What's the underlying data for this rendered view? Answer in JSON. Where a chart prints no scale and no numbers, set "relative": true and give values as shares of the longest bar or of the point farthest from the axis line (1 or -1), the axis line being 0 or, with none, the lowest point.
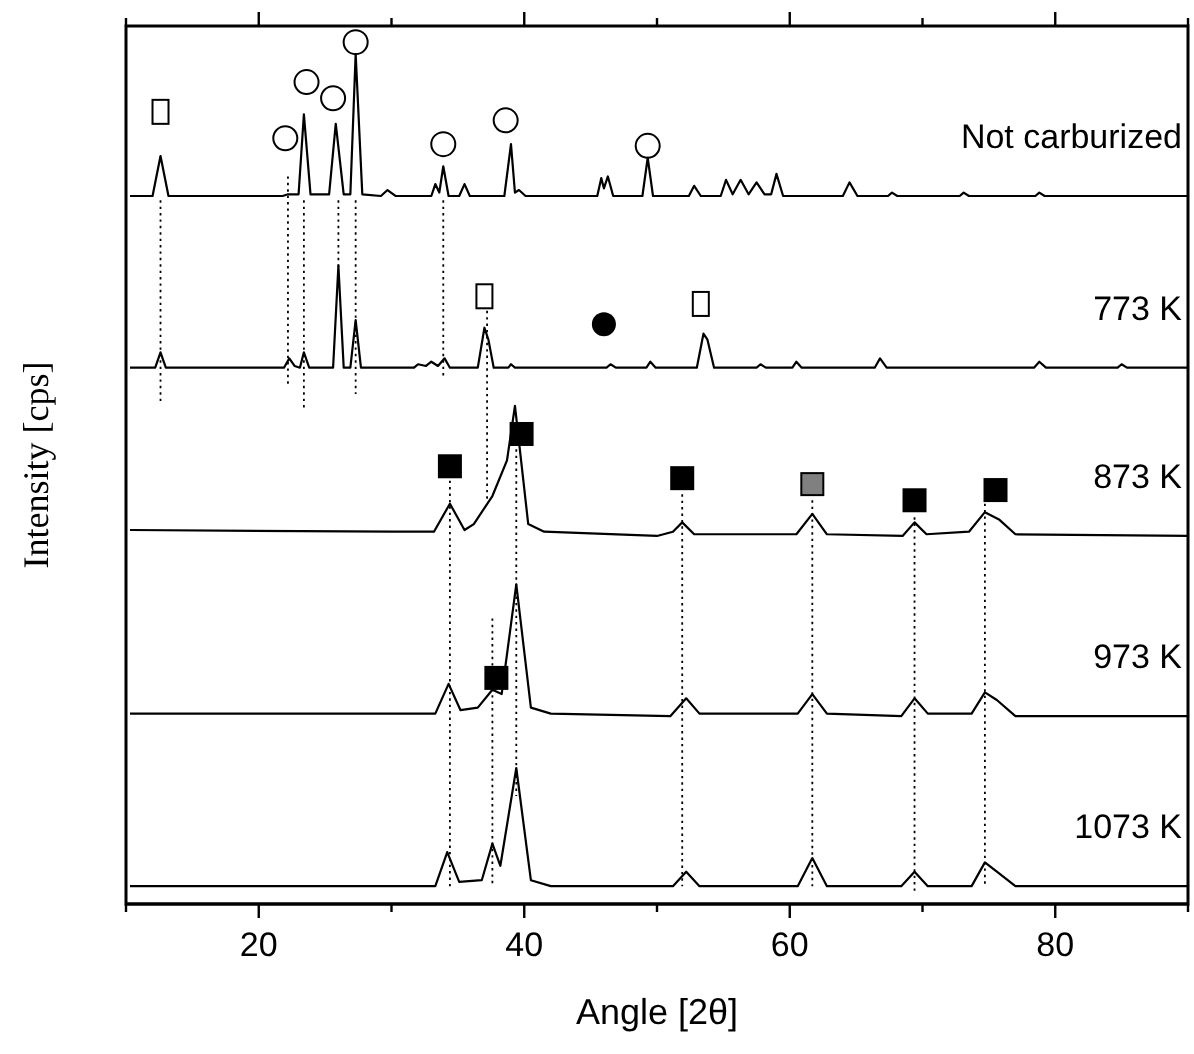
{
  "chart_data": {
    "type": "line",
    "relative": true,
    "xlabel": "Angle [2θ]",
    "ylabel": "Intensity [cps]",
    "tick_labels": "x",
    "xlim": [
      10,
      90
    ],
    "xticks": [
      {
        "value": 10,
        "label": null
      },
      20,
      {
        "value": 30,
        "label": null
      },
      40,
      {
        "value": 50,
        "label": null
      },
      60,
      {
        "value": 70,
        "label": null
      },
      80,
      {
        "value": 90,
        "label": null
      }
    ],
    "annotations": [
      "Not carburized",
      "773 K",
      "873 K",
      "973 K",
      "1073 K"
    ],
    "series": [
      {
        "type": "line",
        "color": "#000000",
        "x": [
          10.3,
          12.0,
          12.6,
          13.2,
          21.8,
          22.2,
          23.0,
          23.4,
          23.9,
          25.3,
          25.8,
          26.4,
          26.9,
          27.3,
          27.8,
          29.2,
          29.7,
          30.3,
          33.0,
          33.3,
          33.6,
          33.9,
          34.3,
          35.1,
          35.5,
          35.9,
          38.5,
          39.0,
          39.3,
          39.6,
          40.1,
          45.5,
          45.8,
          46.0,
          46.3,
          46.7,
          48.9,
          49.3,
          49.7,
          52.4,
          52.8,
          53.3,
          54.8,
          55.2,
          55.7,
          56.3,
          56.9,
          57.5,
          58.1,
          58.6,
          59.0,
          59.5,
          64.0,
          64.5,
          65.1,
          67.4,
          67.7,
          68.1,
          72.8,
          73.1,
          73.5,
          78.5,
          78.8,
          79.2,
          90
        ],
        "values": [
          0.833,
          0.833,
          0.88,
          0.833,
          0.833,
          0.835,
          0.835,
          0.929,
          0.835,
          0.835,
          0.918,
          0.835,
          0.835,
          1.0,
          0.835,
          0.833,
          0.84,
          0.833,
          0.833,
          0.847,
          0.837,
          0.868,
          0.833,
          0.833,
          0.847,
          0.833,
          0.833,
          0.894,
          0.837,
          0.84,
          0.833,
          0.833,
          0.854,
          0.842,
          0.856,
          0.833,
          0.833,
          0.878,
          0.833,
          0.833,
          0.845,
          0.833,
          0.833,
          0.852,
          0.835,
          0.852,
          0.835,
          0.849,
          0.835,
          0.835,
          0.859,
          0.833,
          0.833,
          0.849,
          0.833,
          0.833,
          0.837,
          0.833,
          0.833,
          0.837,
          0.833,
          0.833,
          0.837,
          0.833,
          0.833
        ]
      },
      {
        "type": "line",
        "color": "#000000",
        "x": [
          10.3,
          12.2,
          12.6,
          13.0,
          21.9,
          22.3,
          22.7,
          23.1,
          23.4,
          23.8,
          25.6,
          26.0,
          26.4,
          26.9,
          27.3,
          27.7,
          31.7,
          32.0,
          32.6,
          33.0,
          33.5,
          34.0,
          34.4,
          36.5,
          37.0,
          37.3,
          37.7,
          38.8,
          39.0,
          39.3,
          46.2,
          46.5,
          46.9,
          49.2,
          49.5,
          49.9,
          53.0,
          53.5,
          53.8,
          54.3,
          57.5,
          57.8,
          58.2,
          60.2,
          60.5,
          60.9,
          66.4,
          66.8,
          67.3,
          78.4,
          78.8,
          79.3,
          84.7,
          85.0,
          85.4,
          90
        ],
        "values": [
          0.631,
          0.631,
          0.649,
          0.631,
          0.631,
          0.642,
          0.633,
          0.631,
          0.649,
          0.631,
          0.631,
          0.751,
          0.631,
          0.631,
          0.687,
          0.631,
          0.631,
          0.635,
          0.633,
          0.638,
          0.633,
          0.642,
          0.631,
          0.631,
          0.678,
          0.664,
          0.631,
          0.631,
          0.635,
          0.631,
          0.631,
          0.635,
          0.631,
          0.631,
          0.638,
          0.631,
          0.631,
          0.671,
          0.664,
          0.631,
          0.631,
          0.635,
          0.631,
          0.631,
          0.638,
          0.631,
          0.631,
          0.642,
          0.631,
          0.631,
          0.638,
          0.631,
          0.631,
          0.635,
          0.631,
          0.631
        ]
      },
      {
        "type": "line",
        "color": "#000000",
        "x": [
          10.3,
          30,
          33.2,
          34.4,
          35.5,
          36.2,
          37.6,
          38.7,
          39.3,
          40.3,
          41.5,
          50,
          51.2,
          51.9,
          52.8,
          60.5,
          61.7,
          62.8,
          68.5,
          69.4,
          70.3,
          73.5,
          74.7,
          75.8,
          77,
          90
        ],
        "values": [
          0.44,
          0.438,
          0.438,
          0.471,
          0.44,
          0.447,
          0.48,
          0.522,
          0.586,
          0.447,
          0.438,
          0.433,
          0.438,
          0.449,
          0.435,
          0.435,
          0.459,
          0.435,
          0.433,
          0.449,
          0.435,
          0.438,
          0.461,
          0.452,
          0.435,
          0.433
        ]
      },
      {
        "type": "line",
        "color": "#000000",
        "x": [
          10.3,
          33.3,
          34.3,
          35.2,
          36.5,
          37.6,
          38.3,
          39.4,
          40.5,
          42,
          51,
          52.2,
          53.2,
          60.6,
          61.7,
          62.8,
          68.4,
          69.4,
          70.4,
          73.7,
          74.7,
          75.6,
          77,
          90
        ],
        "values": [
          0.224,
          0.224,
          0.259,
          0.228,
          0.231,
          0.252,
          0.247,
          0.376,
          0.231,
          0.224,
          0.221,
          0.242,
          0.224,
          0.224,
          0.247,
          0.224,
          0.221,
          0.242,
          0.224,
          0.224,
          0.249,
          0.24,
          0.221,
          0.221
        ]
      },
      {
        "type": "line",
        "color": "#000000",
        "x": [
          10.3,
          33.3,
          34.2,
          35.1,
          36.8,
          37.6,
          38.2,
          39.4,
          40.5,
          42,
          51.2,
          52.2,
          53.2,
          60.6,
          61.7,
          62.8,
          68.4,
          69.4,
          70.4,
          73.7,
          74.7,
          75.6,
          77,
          90
        ],
        "values": [
          0.021,
          0.021,
          0.061,
          0.026,
          0.028,
          0.071,
          0.045,
          0.16,
          0.028,
          0.021,
          0.021,
          0.038,
          0.021,
          0.021,
          0.054,
          0.021,
          0.021,
          0.038,
          0.021,
          0.021,
          0.049,
          0.038,
          0.021,
          0.021
        ]
      },
      {
        "type": "line",
        "color": "#000000",
        "line_style": "dotted",
        "x": [
          12.6,
          12.6
        ],
        "values": [
          0.828,
          0.591
        ]
      },
      {
        "type": "line",
        "color": "#000000",
        "line_style": "dotted",
        "x": [
          22.2,
          22.2
        ],
        "values": [
          0.856,
          0.609
        ]
      },
      {
        "type": "line",
        "color": "#000000",
        "line_style": "dotted",
        "x": [
          23.4,
          23.4
        ],
        "values": [
          0.828,
          0.581
        ]
      },
      {
        "type": "line",
        "color": "#000000",
        "line_style": "dotted",
        "x": [
          26.0,
          26.0
        ],
        "values": [
          0.828,
          0.746
        ]
      },
      {
        "type": "line",
        "color": "#000000",
        "line_style": "dotted",
        "x": [
          27.3,
          27.3
        ],
        "values": [
          0.828,
          0.6
        ]
      },
      {
        "type": "line",
        "color": "#000000",
        "line_style": "dotted",
        "x": [
          33.9,
          33.9
        ],
        "values": [
          0.828,
          0.619
        ]
      },
      {
        "type": "line",
        "color": "#000000",
        "line_style": "dotted",
        "x": [
          37.2,
          37.2
        ],
        "values": [
          0.698,
          0.475
        ]
      },
      {
        "type": "line",
        "color": "#000000",
        "line_style": "dotted",
        "x": [
          34.4,
          34.4
        ],
        "values": [
          0.498,
          0.019
        ]
      },
      {
        "type": "line",
        "color": "#000000",
        "line_style": "dotted",
        "x": [
          39.4,
          39.4
        ],
        "values": [
          0.535,
          0.127
        ]
      },
      {
        "type": "line",
        "color": "#000000",
        "line_style": "dotted",
        "x": [
          37.6,
          37.6
        ],
        "values": [
          0.336,
          0.024
        ]
      },
      {
        "type": "line",
        "color": "#000000",
        "line_style": "dotted",
        "x": [
          51.9,
          51.9
        ],
        "values": [
          0.482,
          0.021
        ]
      },
      {
        "type": "line",
        "color": "#000000",
        "line_style": "dotted",
        "x": [
          61.7,
          61.7
        ],
        "values": [
          0.475,
          0.021
        ]
      },
      {
        "type": "line",
        "color": "#000000",
        "line_style": "dotted",
        "x": [
          69.4,
          69.4
        ],
        "values": [
          0.455,
          0.012
        ]
      },
      {
        "type": "line",
        "color": "#000000",
        "line_style": "dotted",
        "x": [
          74.7,
          74.7
        ],
        "values": [
          0.471,
          0.021
        ]
      }
    ]
  }
}
